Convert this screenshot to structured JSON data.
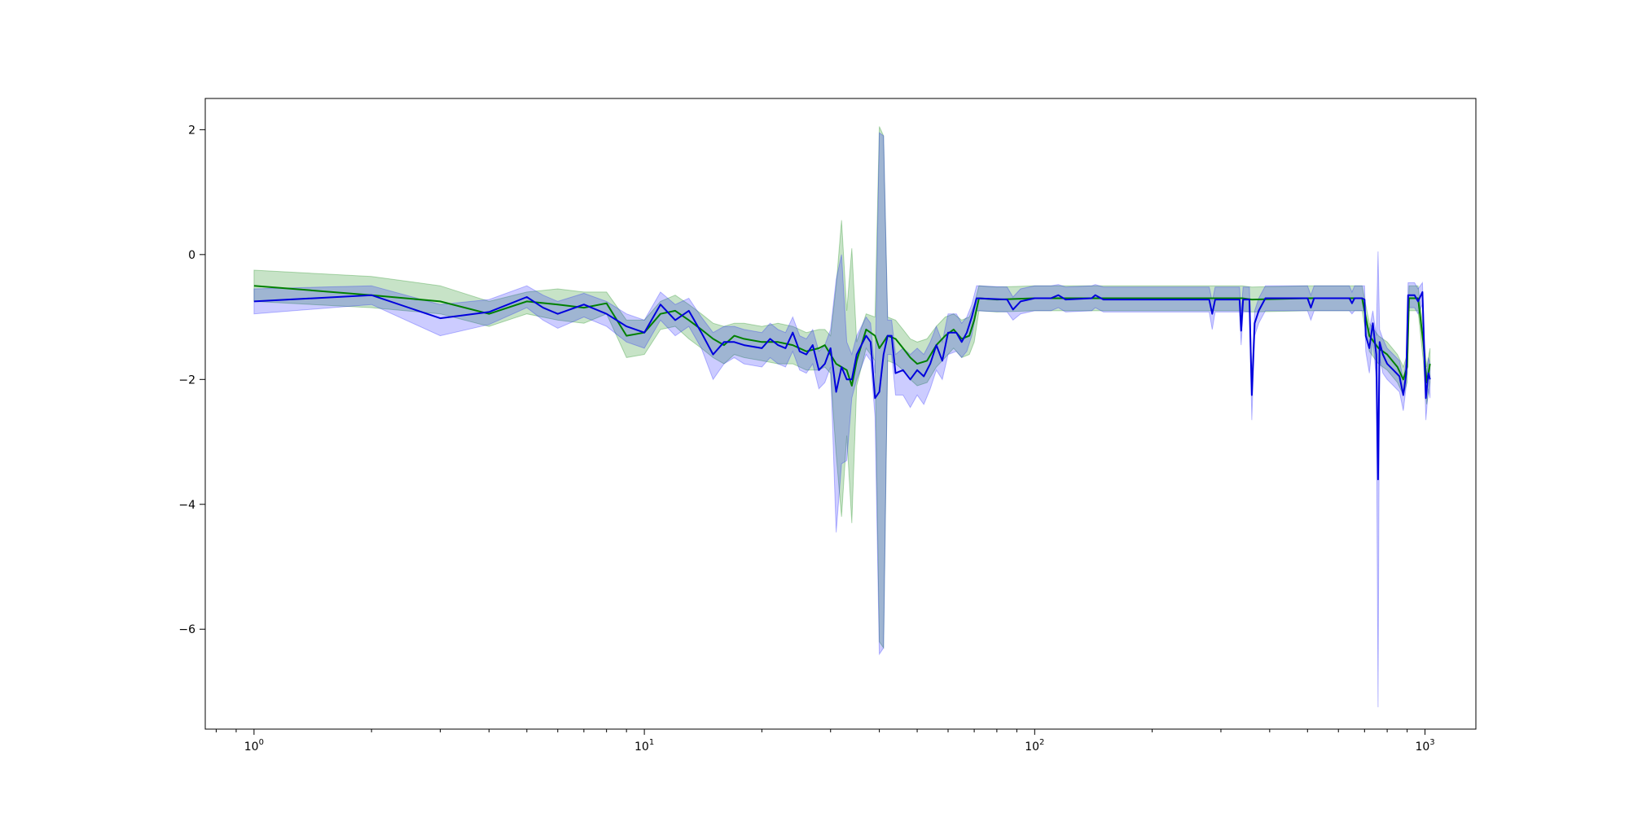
{
  "chart_data": {
    "type": "line",
    "title": "",
    "xlabel": "",
    "ylabel": "",
    "xscale": "log",
    "xlim": [
      0.75,
      1350
    ],
    "ylim": [
      -7.6,
      2.5
    ],
    "grid": false,
    "legend": "none",
    "x_ticks": [
      {
        "value": 1,
        "base": "10",
        "exp": "0"
      },
      {
        "value": 10,
        "base": "10",
        "exp": "1"
      },
      {
        "value": 100,
        "base": "10",
        "exp": "2"
      },
      {
        "value": 1000,
        "base": "10",
        "exp": "3"
      }
    ],
    "y_ticks": [
      {
        "value": 2,
        "label": "2"
      },
      {
        "value": 0,
        "label": "0"
      },
      {
        "value": -2,
        "label": "−2"
      },
      {
        "value": -4,
        "label": "−4"
      },
      {
        "value": -6,
        "label": "−6"
      }
    ],
    "series": [
      {
        "color": "#008000",
        "band_color": "#008000",
        "band_opacity": 0.22,
        "points": [
          [
            1,
            -0.5,
            -0.25,
            -0.75
          ],
          [
            2,
            -0.65,
            -0.35,
            -0.85
          ],
          [
            3,
            -0.75,
            -0.5,
            -0.95
          ],
          [
            4,
            -0.95,
            -0.75,
            -1.15
          ],
          [
            5,
            -0.75,
            -0.6,
            -0.95
          ],
          [
            6,
            -0.8,
            -0.55,
            -1.05
          ],
          [
            7,
            -0.85,
            -0.6,
            -1.1
          ],
          [
            8,
            -0.78,
            -0.6,
            -0.95
          ],
          [
            9,
            -1.3,
            -1.05,
            -1.65
          ],
          [
            10,
            -1.25,
            -1.05,
            -1.6
          ],
          [
            11,
            -0.95,
            -0.75,
            -1.2
          ],
          [
            12,
            -0.9,
            -0.65,
            -1.15
          ],
          [
            13,
            -1.05,
            -0.8,
            -1.35
          ],
          [
            14,
            -1.2,
            -0.95,
            -1.5
          ],
          [
            15,
            -1.35,
            -1.1,
            -1.65
          ],
          [
            16,
            -1.45,
            -1.15,
            -1.75
          ],
          [
            17,
            -1.3,
            -1.1,
            -1.6
          ],
          [
            18,
            -1.35,
            -1.1,
            -1.65
          ],
          [
            20,
            -1.4,
            -1.15,
            -1.7
          ],
          [
            22,
            -1.4,
            -1.1,
            -1.75
          ],
          [
            24,
            -1.45,
            -1.15,
            -1.75
          ],
          [
            26,
            -1.55,
            -1.25,
            -1.85
          ],
          [
            28,
            -1.5,
            -1.2,
            -1.85
          ],
          [
            29,
            -1.45,
            -1.2,
            -1.8
          ],
          [
            30,
            -1.6,
            -1.3,
            -1.9
          ],
          [
            31,
            -1.75,
            -0.5,
            -3.2
          ],
          [
            32,
            -1.8,
            0.55,
            -4.2
          ],
          [
            33,
            -1.85,
            -0.9,
            -2.9
          ],
          [
            34,
            -2.1,
            0.1,
            -4.3
          ],
          [
            35,
            -1.7,
            -1.4,
            -2.1
          ],
          [
            37,
            -1.2,
            -0.95,
            -1.5
          ],
          [
            39,
            -1.3,
            -1.0,
            -1.7
          ],
          [
            40,
            -1.5,
            2.05,
            -6.2
          ],
          [
            41,
            -1.4,
            1.9,
            -6.3
          ],
          [
            42,
            -1.3,
            -1.0,
            -1.7
          ],
          [
            44,
            -1.35,
            -1.05,
            -1.75
          ],
          [
            46,
            -1.5,
            -1.2,
            -1.85
          ],
          [
            48,
            -1.65,
            -1.35,
            -2.0
          ],
          [
            50,
            -1.75,
            -1.4,
            -2.1
          ],
          [
            53,
            -1.7,
            -1.35,
            -2.05
          ],
          [
            56,
            -1.45,
            -1.15,
            -1.8
          ],
          [
            59,
            -1.3,
            -1.0,
            -1.65
          ],
          [
            62,
            -1.2,
            -0.95,
            -1.5
          ],
          [
            65,
            -1.35,
            -1.05,
            -1.65
          ],
          [
            68,
            -1.3,
            -1.0,
            -1.6
          ],
          [
            70,
            -1.05,
            -0.8,
            -1.4
          ],
          [
            72,
            -0.7,
            -0.5,
            -0.9
          ],
          [
            80,
            -0.72,
            -0.52,
            -0.92
          ],
          [
            100,
            -0.7,
            -0.5,
            -0.9
          ],
          [
            200,
            -0.7,
            -0.5,
            -0.9
          ],
          [
            340,
            -0.7,
            -0.5,
            -0.9
          ],
          [
            360,
            -0.72,
            -0.52,
            -0.92
          ],
          [
            500,
            -0.7,
            -0.5,
            -0.9
          ],
          [
            690,
            -0.7,
            -0.5,
            -0.9
          ],
          [
            720,
            -1.3,
            -1.1,
            -1.55
          ],
          [
            760,
            -1.5,
            -1.3,
            -1.75
          ],
          [
            800,
            -1.6,
            -1.4,
            -1.85
          ],
          [
            850,
            -1.8,
            -1.6,
            -2.05
          ],
          [
            880,
            -2.0,
            -1.8,
            -2.25
          ],
          [
            900,
            -1.8,
            -1.6,
            -2.05
          ],
          [
            910,
            -0.7,
            -0.5,
            -0.9
          ],
          [
            960,
            -0.7,
            -0.5,
            -0.9
          ],
          [
            990,
            -1.4,
            -1.2,
            -1.7
          ],
          [
            1010,
            -2.05,
            -1.8,
            -2.4
          ],
          [
            1030,
            -1.75,
            -1.5,
            -2.05
          ]
        ]
      },
      {
        "color": "#0000dd",
        "band_color": "#0000ff",
        "band_opacity": 0.2,
        "points": [
          [
            1,
            -0.75,
            -0.55,
            -0.95
          ],
          [
            2,
            -0.65,
            -0.5,
            -0.8
          ],
          [
            3,
            -1.02,
            -0.8,
            -1.3
          ],
          [
            4,
            -0.92,
            -0.72,
            -1.12
          ],
          [
            5,
            -0.68,
            -0.5,
            -0.85
          ],
          [
            5.5,
            -0.85,
            -0.65,
            -1.05
          ],
          [
            6,
            -0.95,
            -0.75,
            -1.18
          ],
          [
            7,
            -0.8,
            -0.62,
            -1.0
          ],
          [
            8,
            -0.95,
            -0.75,
            -1.15
          ],
          [
            9,
            -1.15,
            -0.95,
            -1.4
          ],
          [
            10,
            -1.25,
            -1.05,
            -1.5
          ],
          [
            11,
            -0.8,
            -0.6,
            -1.05
          ],
          [
            12,
            -1.05,
            -0.8,
            -1.3
          ],
          [
            13,
            -0.9,
            -0.7,
            -1.15
          ],
          [
            14,
            -1.25,
            -1.0,
            -1.5
          ],
          [
            15,
            -1.6,
            -1.25,
            -2.0
          ],
          [
            16,
            -1.4,
            -1.15,
            -1.75
          ],
          [
            17,
            -1.4,
            -1.15,
            -1.65
          ],
          [
            18,
            -1.45,
            -1.2,
            -1.75
          ],
          [
            20,
            -1.5,
            -1.25,
            -1.8
          ],
          [
            21,
            -1.35,
            -1.1,
            -1.65
          ],
          [
            22,
            -1.45,
            -1.2,
            -1.75
          ],
          [
            23,
            -1.5,
            -1.25,
            -1.8
          ],
          [
            24,
            -1.25,
            -1.0,
            -1.55
          ],
          [
            25,
            -1.55,
            -1.3,
            -1.85
          ],
          [
            26,
            -1.6,
            -1.35,
            -1.9
          ],
          [
            27,
            -1.45,
            -1.2,
            -1.75
          ],
          [
            28,
            -1.85,
            -1.55,
            -2.15
          ],
          [
            29,
            -1.75,
            -1.45,
            -2.05
          ],
          [
            30,
            -1.5,
            -1.2,
            -1.8
          ],
          [
            31,
            -2.2,
            -0.4,
            -4.45
          ],
          [
            32,
            -1.8,
            0.0,
            -3.35
          ],
          [
            33,
            -2.0,
            -1.4,
            -3.3
          ],
          [
            34,
            -2.0,
            -1.6,
            -2.3
          ],
          [
            35,
            -1.6,
            -1.3,
            -2.0
          ],
          [
            37,
            -1.3,
            -1.0,
            -1.6
          ],
          [
            38,
            -1.4,
            -1.1,
            -1.7
          ],
          [
            39,
            -2.3,
            -1.9,
            -2.6
          ],
          [
            40,
            -2.2,
            1.95,
            -6.4
          ],
          [
            41,
            -1.6,
            1.9,
            -6.3
          ],
          [
            42,
            -1.3,
            -1.05,
            -1.6
          ],
          [
            43,
            -1.3,
            -1.05,
            -1.6
          ],
          [
            44,
            -1.9,
            -1.6,
            -2.25
          ],
          [
            46,
            -1.85,
            -1.5,
            -2.25
          ],
          [
            48,
            -2.0,
            -1.6,
            -2.45
          ],
          [
            50,
            -1.85,
            -1.5,
            -2.25
          ],
          [
            52,
            -1.95,
            -1.6,
            -2.4
          ],
          [
            54,
            -1.75,
            -1.4,
            -2.15
          ],
          [
            56,
            -1.45,
            -1.15,
            -1.85
          ],
          [
            58,
            -1.7,
            -1.4,
            -2.0
          ],
          [
            60,
            -1.25,
            -0.95,
            -1.6
          ],
          [
            63,
            -1.25,
            -0.95,
            -1.55
          ],
          [
            65,
            -1.4,
            -1.1,
            -1.65
          ],
          [
            67,
            -1.25,
            -1.0,
            -1.55
          ],
          [
            69,
            -1.0,
            -0.8,
            -1.3
          ],
          [
            71,
            -0.7,
            -0.5,
            -0.9
          ],
          [
            85,
            -0.72,
            -0.52,
            -0.92
          ],
          [
            88,
            -0.88,
            -0.68,
            -1.05
          ],
          [
            92,
            -0.75,
            -0.55,
            -0.95
          ],
          [
            100,
            -0.7,
            -0.5,
            -0.9
          ],
          [
            110,
            -0.7,
            -0.5,
            -0.9
          ],
          [
            115,
            -0.65,
            -0.48,
            -0.85
          ],
          [
            120,
            -0.72,
            -0.52,
            -0.92
          ],
          [
            140,
            -0.7,
            -0.5,
            -0.9
          ],
          [
            143,
            -0.65,
            -0.48,
            -0.85
          ],
          [
            150,
            -0.72,
            -0.52,
            -0.92
          ],
          [
            280,
            -0.72,
            -0.52,
            -0.92
          ],
          [
            285,
            -0.95,
            -0.75,
            -1.2
          ],
          [
            290,
            -0.72,
            -0.52,
            -0.92
          ],
          [
            335,
            -0.72,
            -0.52,
            -0.92
          ],
          [
            338,
            -1.22,
            -0.95,
            -1.45
          ],
          [
            342,
            -0.72,
            -0.52,
            -0.92
          ],
          [
            355,
            -0.72,
            -0.52,
            -0.92
          ],
          [
            360,
            -2.25,
            -1.95,
            -2.65
          ],
          [
            366,
            -1.1,
            -0.9,
            -1.3
          ],
          [
            375,
            -0.9,
            -0.7,
            -1.1
          ],
          [
            390,
            -0.7,
            -0.5,
            -0.9
          ],
          [
            500,
            -0.7,
            -0.5,
            -0.9
          ],
          [
            510,
            -0.85,
            -0.65,
            -1.05
          ],
          [
            520,
            -0.7,
            -0.5,
            -0.9
          ],
          [
            640,
            -0.7,
            -0.5,
            -0.9
          ],
          [
            650,
            -0.78,
            -0.6,
            -0.95
          ],
          [
            660,
            -0.7,
            -0.5,
            -0.9
          ],
          [
            690,
            -0.7,
            -0.5,
            -0.9
          ],
          [
            700,
            -0.72,
            -0.5,
            -0.9
          ],
          [
            705,
            -1.3,
            -1.1,
            -1.55
          ],
          [
            720,
            -1.5,
            -1.2,
            -1.9
          ],
          [
            735,
            -1.1,
            -0.9,
            -1.35
          ],
          [
            750,
            -1.6,
            -1.3,
            -2.0
          ],
          [
            758,
            -3.6,
            0.05,
            -7.25
          ],
          [
            765,
            -1.4,
            -1.2,
            -1.65
          ],
          [
            780,
            -1.6,
            -1.35,
            -1.9
          ],
          [
            800,
            -1.75,
            -1.5,
            -2.0
          ],
          [
            830,
            -1.85,
            -1.6,
            -2.1
          ],
          [
            860,
            -1.95,
            -1.7,
            -2.2
          ],
          [
            880,
            -2.25,
            -2.0,
            -2.5
          ],
          [
            895,
            -1.9,
            -1.7,
            -2.1
          ],
          [
            905,
            -0.65,
            -0.45,
            -0.85
          ],
          [
            940,
            -0.65,
            -0.45,
            -0.85
          ],
          [
            960,
            -0.75,
            -0.55,
            -0.95
          ],
          [
            985,
            -0.6,
            -0.45,
            -0.8
          ],
          [
            995,
            -1.5,
            -1.25,
            -1.75
          ],
          [
            1005,
            -2.3,
            -2.05,
            -2.65
          ],
          [
            1020,
            -1.9,
            -1.65,
            -2.15
          ],
          [
            1030,
            -2.0,
            -1.75,
            -2.3
          ]
        ]
      }
    ]
  }
}
